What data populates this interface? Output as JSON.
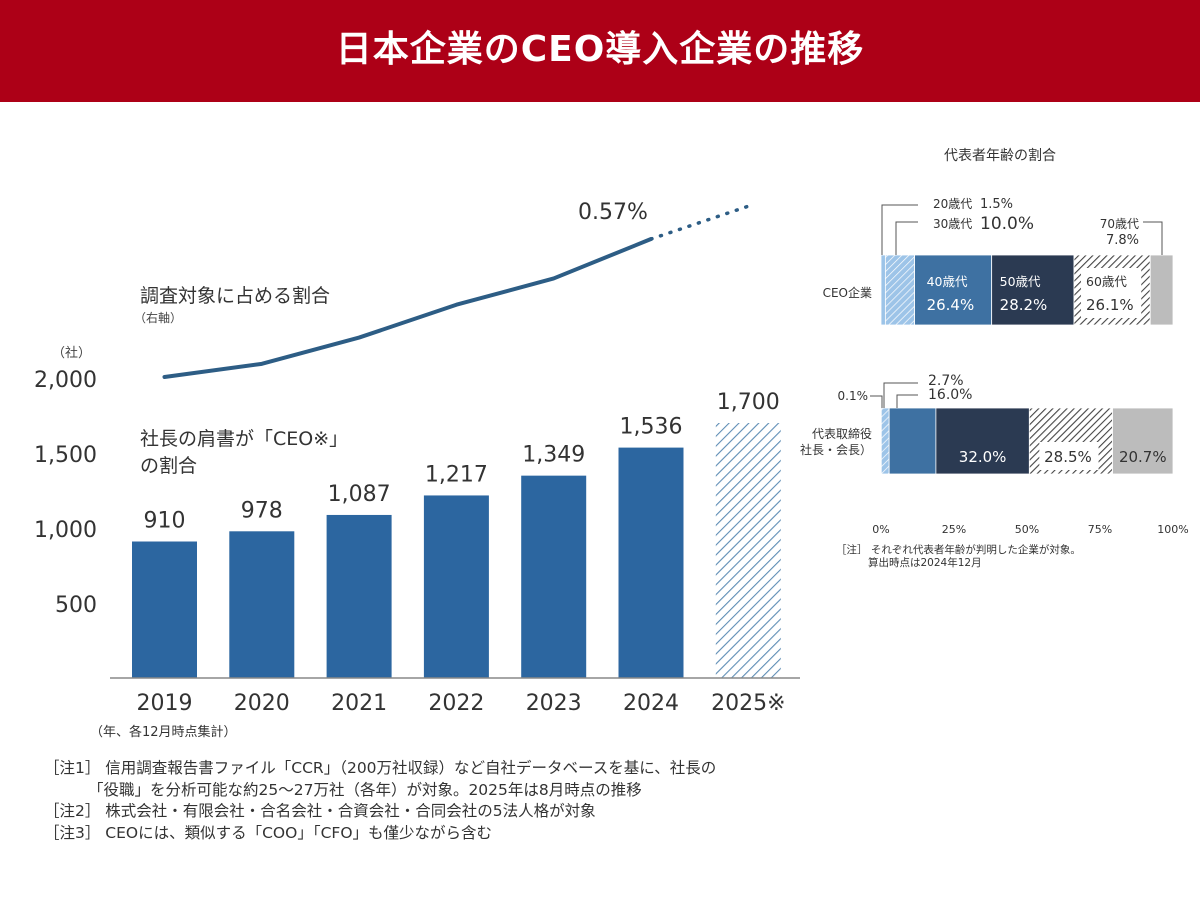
{
  "header": {
    "title": "日本企業のCEO導入企業の推移"
  },
  "colors": {
    "header_bg": "#ad0017",
    "bar": "#2c66a0",
    "line": "#2d5d85",
    "age_20s": "#9dc4e8",
    "age_30s": "#6da2d6",
    "age_40s": "#3e71a2",
    "age_50s": "#2b3a52",
    "age_60s": "#555555",
    "age_70s": "#bcbcbc"
  },
  "chart_data": [
    {
      "type": "bar",
      "title": "",
      "unit_label": "（社）",
      "categories": [
        "2019",
        "2020",
        "2021",
        "2022",
        "2023",
        "2024",
        "2025※"
      ],
      "series": [
        {
          "name": "社長の肩書が「CEO※」の割合",
          "name_line1": "社長の肩書が「CEO※」",
          "name_line2": "の割合",
          "values": [
            910,
            978,
            1087,
            1217,
            1349,
            1536,
            1700
          ],
          "labels": [
            "910",
            "978",
            "1,087",
            "1,217",
            "1,349",
            "1,536",
            "1,700"
          ],
          "estimated_last": true
        },
        {
          "name": "調査対象に占める割合",
          "axis_note": "（右軸）",
          "type": "line",
          "values": [
            0.36,
            0.38,
            0.42,
            0.47,
            0.51,
            0.57,
            0.62
          ],
          "value_label": "0.57%",
          "value_label_index": 5,
          "dotted_last": true
        }
      ],
      "yticks": [
        500,
        1000,
        1500,
        2000
      ],
      "ytick_labels": [
        "500",
        "1,000",
        "1,500",
        "2,000"
      ],
      "ylim": [
        0,
        2000
      ],
      "xlabel_note": "（年、各12月時点集計）",
      "grid": false
    },
    {
      "type": "bar",
      "stacked": true,
      "orientation": "horizontal",
      "title": "代表者年齢の割合",
      "categories": [
        "CEO企業",
        "代表取締役社長・会長)"
      ],
      "category_lines": [
        [
          "CEO企業"
        ],
        [
          "代表取締役",
          "社長・会長）"
        ]
      ],
      "series": [
        {
          "name": "20歳代",
          "values": [
            1.5,
            0.1
          ]
        },
        {
          "name": "30歳代",
          "values": [
            10.0,
            2.7
          ]
        },
        {
          "name": "40歳代",
          "values": [
            26.4,
            16.0
          ]
        },
        {
          "name": "50歳代",
          "values": [
            28.2,
            32.0
          ]
        },
        {
          "name": "60歳代",
          "values": [
            26.1,
            28.5
          ]
        },
        {
          "name": "70歳代",
          "values": [
            7.8,
            20.7
          ]
        }
      ],
      "ceo_labels": {
        "s20": "20歳代",
        "s20_val": "1.5%",
        "s30": "30歳代",
        "s30_val": "10.0%",
        "s70": "70歳代",
        "s70_val": "7.8%",
        "s40": "40歳代",
        "s40_val": "26.4%",
        "s50": "50歳代",
        "s50_val": "28.2%",
        "s60": "60歳代",
        "s60_val": "26.1%"
      },
      "rep_labels": {
        "s20_val": "0.1%",
        "s30_val": "2.7%",
        "s40_val": "16.0%",
        "s50_val": "32.0%",
        "s60_val": "28.5%",
        "s70_val": "20.7%"
      },
      "xticks": [
        0,
        25,
        50,
        75,
        100
      ],
      "xtick_labels": [
        "0%",
        "25%",
        "50%",
        "75%",
        "100%"
      ],
      "xlim": [
        0,
        100
      ]
    }
  ],
  "notes": {
    "note1_line1": "［注1］ 信用調査報告書ファイル「CCR」（200万社収録）など自社データベースを基に、社長の",
    "note1_line2": "「役職」を分析可能な約25～27万社（各年）が対象。2025年は8月時点の推移",
    "note2": "［注2］ 株式会社・有限会社・合名会社・合資会社・合同会社の5法人格が対象",
    "note3": "［注3］ CEOには、類似する「COO」「CFO」も僅少ながら含む"
  },
  "age_note": {
    "line1": "［注］ それぞれ代表者年齢が判明した企業が対象。",
    "line2": "算出時点は2024年12月"
  }
}
